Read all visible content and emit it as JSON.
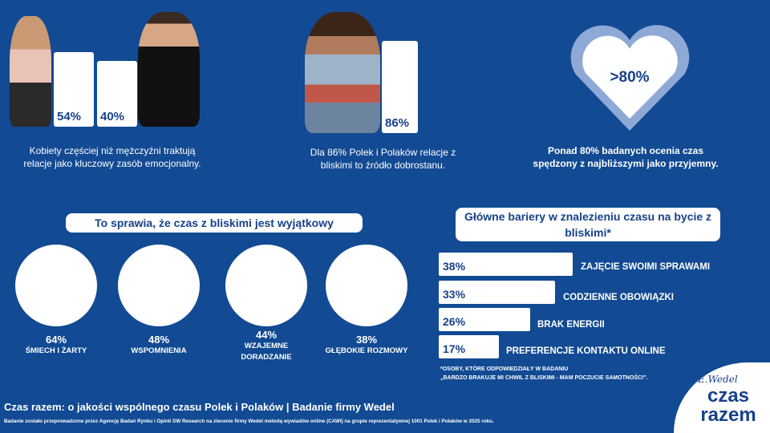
{
  "top": {
    "gender": {
      "women_pct": "54%",
      "men_pct": "40%",
      "caption": "Kobiety częściej niż mężczyźni traktują relacje jako kluczowy zasób emocjonalny."
    },
    "wellbeing": {
      "pct": "86%",
      "caption": "Dla 86% Polek i Polaków relacje z bliskimi to źródło dobrostanu."
    },
    "heart": {
      "pct": ">80%",
      "caption": "Ponad 80% badanych ocenia czas spędzony z najbliższymi jako przyjemny."
    }
  },
  "special": {
    "title": "To sprawia, że czas z bliskimi jest wyjątkowy",
    "items": [
      {
        "value": "64%",
        "label": "ŚMIECH I ŻARTY",
        "icon": "laughing-people-icon"
      },
      {
        "value": "48%",
        "label": "WSPOMNIENIA",
        "icon": "memories-icon"
      },
      {
        "value": "44%",
        "label": "WZAJEMNE DORADZANIE",
        "icon": "advice-icon"
      },
      {
        "value": "38%",
        "label": "GŁĘBOKIE ROZMOWY",
        "icon": "conversation-icon"
      }
    ]
  },
  "barriers": {
    "title": "Główne bariery w znalezieniu czasu na bycie z bliskimi*",
    "items": [
      {
        "value": "38%",
        "pct": 38,
        "label": "ZAJĘCIE SWOIMI SPRAWAMI"
      },
      {
        "value": "33%",
        "pct": 33,
        "label": "CODZIENNE OBOWIĄZKI"
      },
      {
        "value": "26%",
        "pct": 26,
        "label": "BRAK ENERGII"
      },
      {
        "value": "17%",
        "pct": 17,
        "label": "PREFERENCJE KONTAKTU ONLINE"
      }
    ],
    "footnote1": "*OSOBY, KTÓRE ODPOWIEDZIAŁY W BADANIU",
    "footnote2": "„BARDZO BRAKUJE MI CHWIL Z BLISKIMI - MAM POCZUCIE SAMOTNOŚCI”."
  },
  "footer": {
    "title": "Czas razem: o jakości wspólnego czasu Polek i Polaków | Badanie firmy Wedel",
    "note": "Badanie zostało przeprowadzone przez Agencję Badań Rynku i Opinii SW Research na zlecenie firmy Wedel metodą wywiadów online (CAWI) na grupie reprezentatywnej 1001 Polek i Polaków w 2025 roku."
  },
  "logo": {
    "brand": "E.Wedel",
    "line1": "czas",
    "line2": "razem"
  },
  "colors": {
    "background": "#124a93",
    "accent": "#17418a",
    "heart_outer": "#8fa9d6"
  }
}
